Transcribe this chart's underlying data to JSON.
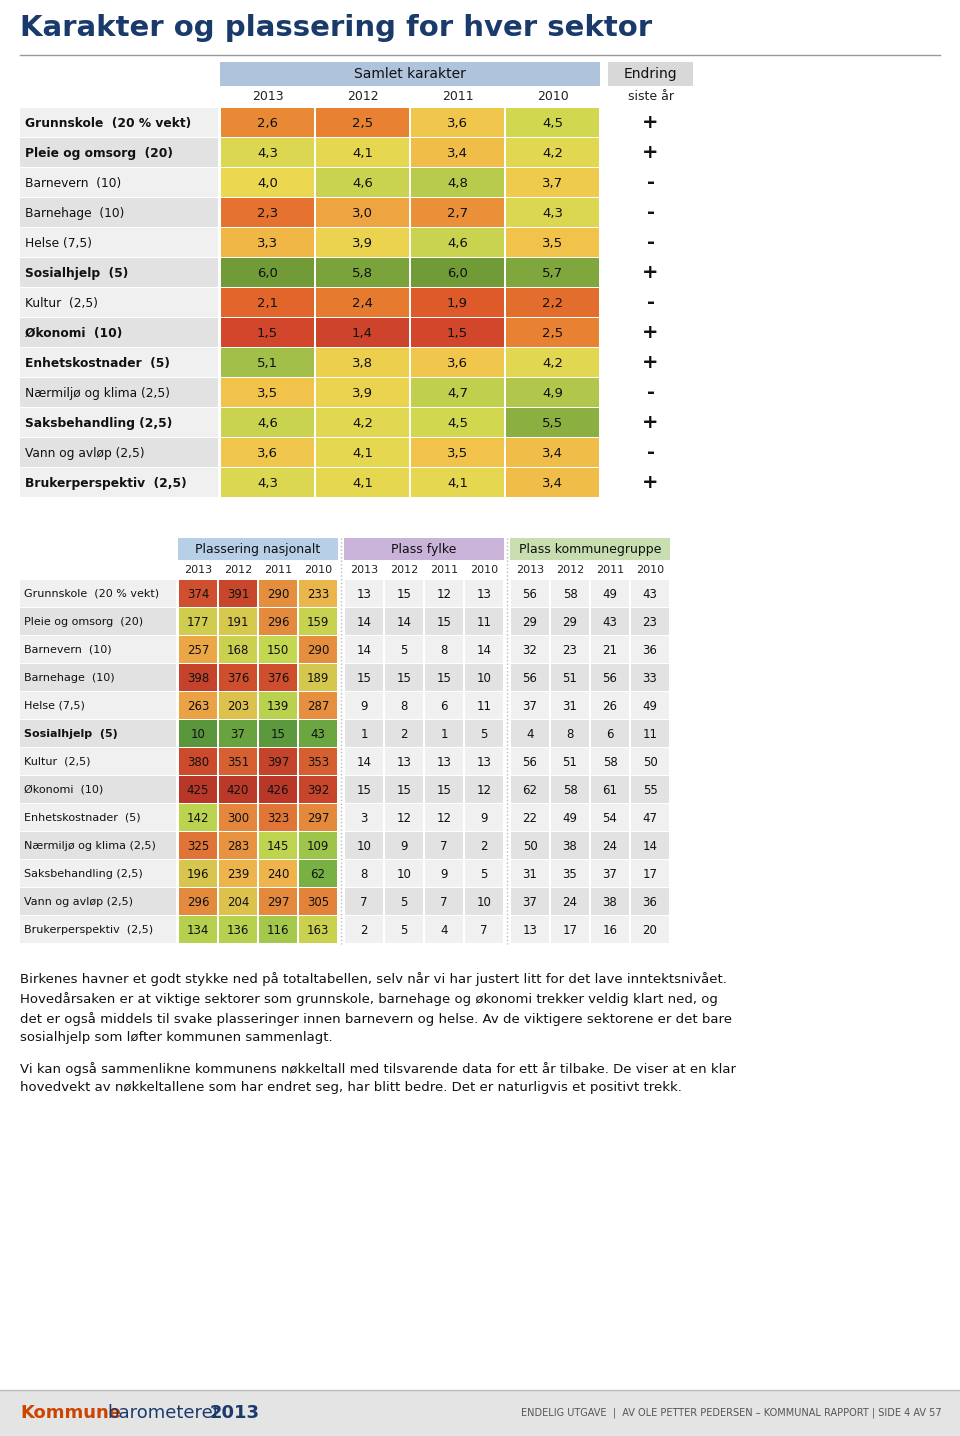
{
  "title": "Karakter og plassering for hver sektor",
  "title_color": "#1a3a6b",
  "background_color": "#ffffff",
  "table1": {
    "years": [
      "2013",
      "2012",
      "2011",
      "2010"
    ],
    "rows": [
      {
        "label": "Grunnskole  (20 % vekt)",
        "vals": [
          2.6,
          2.5,
          3.6,
          4.5
        ],
        "endring": "+"
      },
      {
        "label": "Pleie og omsorg  (20)",
        "vals": [
          4.3,
          4.1,
          3.4,
          4.2
        ],
        "endring": "+"
      },
      {
        "label": "Barnevern  (10)",
        "vals": [
          4.0,
          4.6,
          4.8,
          3.7
        ],
        "endring": "-"
      },
      {
        "label": "Barnehage  (10)",
        "vals": [
          2.3,
          3.0,
          2.7,
          4.3
        ],
        "endring": "-"
      },
      {
        "label": "Helse (7,5)",
        "vals": [
          3.3,
          3.9,
          4.6,
          3.5
        ],
        "endring": "-"
      },
      {
        "label": "Sosialhjelp  (5)",
        "vals": [
          6.0,
          5.8,
          6.0,
          5.7
        ],
        "endring": "+"
      },
      {
        "label": "Kultur  (2,5)",
        "vals": [
          2.1,
          2.4,
          1.9,
          2.2
        ],
        "endring": "-"
      },
      {
        "label": "Økonomi  (10)",
        "vals": [
          1.5,
          1.4,
          1.5,
          2.5
        ],
        "endring": "+"
      },
      {
        "label": "Enhetskostnader  (5)",
        "vals": [
          5.1,
          3.8,
          3.6,
          4.2
        ],
        "endring": "+"
      },
      {
        "label": "Nærmiljø og klima (2,5)",
        "vals": [
          3.5,
          3.9,
          4.7,
          4.9
        ],
        "endring": "-"
      },
      {
        "label": "Saksbehandling (2,5)",
        "vals": [
          4.6,
          4.2,
          4.5,
          5.5
        ],
        "endring": "+"
      },
      {
        "label": "Vann og avløp (2,5)",
        "vals": [
          3.6,
          4.1,
          3.5,
          3.4
        ],
        "endring": "-"
      },
      {
        "label": "Brukerperspektiv  (2,5)",
        "vals": [
          4.3,
          4.1,
          4.1,
          3.4
        ],
        "endring": "+"
      }
    ]
  },
  "table2": {
    "sections": [
      {
        "title": "Plassering nasjonalt",
        "color": "#b8cfe8"
      },
      {
        "title": "Plass fylke",
        "color": "#c9b3d9"
      },
      {
        "title": "Plass kommunegruppe",
        "color": "#c8ddb0"
      }
    ],
    "years": [
      "2013",
      "2012",
      "2011",
      "2010"
    ],
    "rows": [
      {
        "label": "Grunnskole  (20 % vekt)",
        "nat": [
          374,
          391,
          290,
          233
        ],
        "fylke": [
          13,
          15,
          12,
          13
        ],
        "kg": [
          56,
          58,
          49,
          43
        ]
      },
      {
        "label": "Pleie og omsorg  (20)",
        "nat": [
          177,
          191,
          296,
          159
        ],
        "fylke": [
          14,
          14,
          15,
          11
        ],
        "kg": [
          29,
          29,
          43,
          23
        ]
      },
      {
        "label": "Barnevern  (10)",
        "nat": [
          257,
          168,
          150,
          290
        ],
        "fylke": [
          14,
          5,
          8,
          14
        ],
        "kg": [
          32,
          23,
          21,
          36
        ]
      },
      {
        "label": "Barnehage  (10)",
        "nat": [
          398,
          376,
          376,
          189
        ],
        "fylke": [
          15,
          15,
          15,
          10
        ],
        "kg": [
          56,
          51,
          56,
          33
        ]
      },
      {
        "label": "Helse (7,5)",
        "nat": [
          263,
          203,
          139,
          287
        ],
        "fylke": [
          9,
          8,
          6,
          11
        ],
        "kg": [
          37,
          31,
          26,
          49
        ]
      },
      {
        "label": "Sosialhjelp  (5)",
        "nat": [
          10,
          37,
          15,
          43
        ],
        "fylke": [
          1,
          2,
          1,
          5
        ],
        "kg": [
          4,
          8,
          6,
          11
        ]
      },
      {
        "label": "Kultur  (2,5)",
        "nat": [
          380,
          351,
          397,
          353
        ],
        "fylke": [
          14,
          13,
          13,
          13
        ],
        "kg": [
          56,
          51,
          58,
          50
        ]
      },
      {
        "label": "Økonomi  (10)",
        "nat": [
          425,
          420,
          426,
          392
        ],
        "fylke": [
          15,
          15,
          15,
          12
        ],
        "kg": [
          62,
          58,
          61,
          55
        ]
      },
      {
        "label": "Enhetskostnader  (5)",
        "nat": [
          142,
          300,
          323,
          297
        ],
        "fylke": [
          3,
          12,
          12,
          9
        ],
        "kg": [
          22,
          49,
          54,
          47
        ]
      },
      {
        "label": "Nærmiljø og klima (2,5)",
        "nat": [
          325,
          283,
          145,
          109
        ],
        "fylke": [
          10,
          9,
          7,
          2
        ],
        "kg": [
          50,
          38,
          24,
          14
        ]
      },
      {
        "label": "Saksbehandling (2,5)",
        "nat": [
          196,
          239,
          240,
          62
        ],
        "fylke": [
          8,
          10,
          9,
          5
        ],
        "kg": [
          31,
          35,
          37,
          17
        ]
      },
      {
        "label": "Vann og avløp (2,5)",
        "nat": [
          296,
          204,
          297,
          305
        ],
        "fylke": [
          7,
          5,
          7,
          10
        ],
        "kg": [
          37,
          24,
          38,
          36
        ]
      },
      {
        "label": "Brukerperspektiv  (2,5)",
        "nat": [
          134,
          136,
          116,
          163
        ],
        "fylke": [
          2,
          5,
          4,
          7
        ],
        "kg": [
          13,
          17,
          16,
          20
        ]
      }
    ]
  },
  "paragraph1": "Birkenes havner et godt stykke ned på totaltabellen, selv når vi har justert litt for det lave inntektsnivået.\nHovedårsaken er at viktige sektorer som grunnskole, barnehage og økonomi trekker veldig klart ned, og\ndet er også middels til svake plasseringer innen barnevern og helse. Av de viktigere sektorene er det bare\nsosialhjelp som løfter kommunen sammenlagt.",
  "paragraph2": "Vi kan også sammenlikne kommunens nøkkeltall med tilsvarende data for ett år tilbake. De viser at en klar\nhovedvekt av nøkkeltallene som har endret seg, har blitt bedre. Det er naturligvis et positivt trekk."
}
